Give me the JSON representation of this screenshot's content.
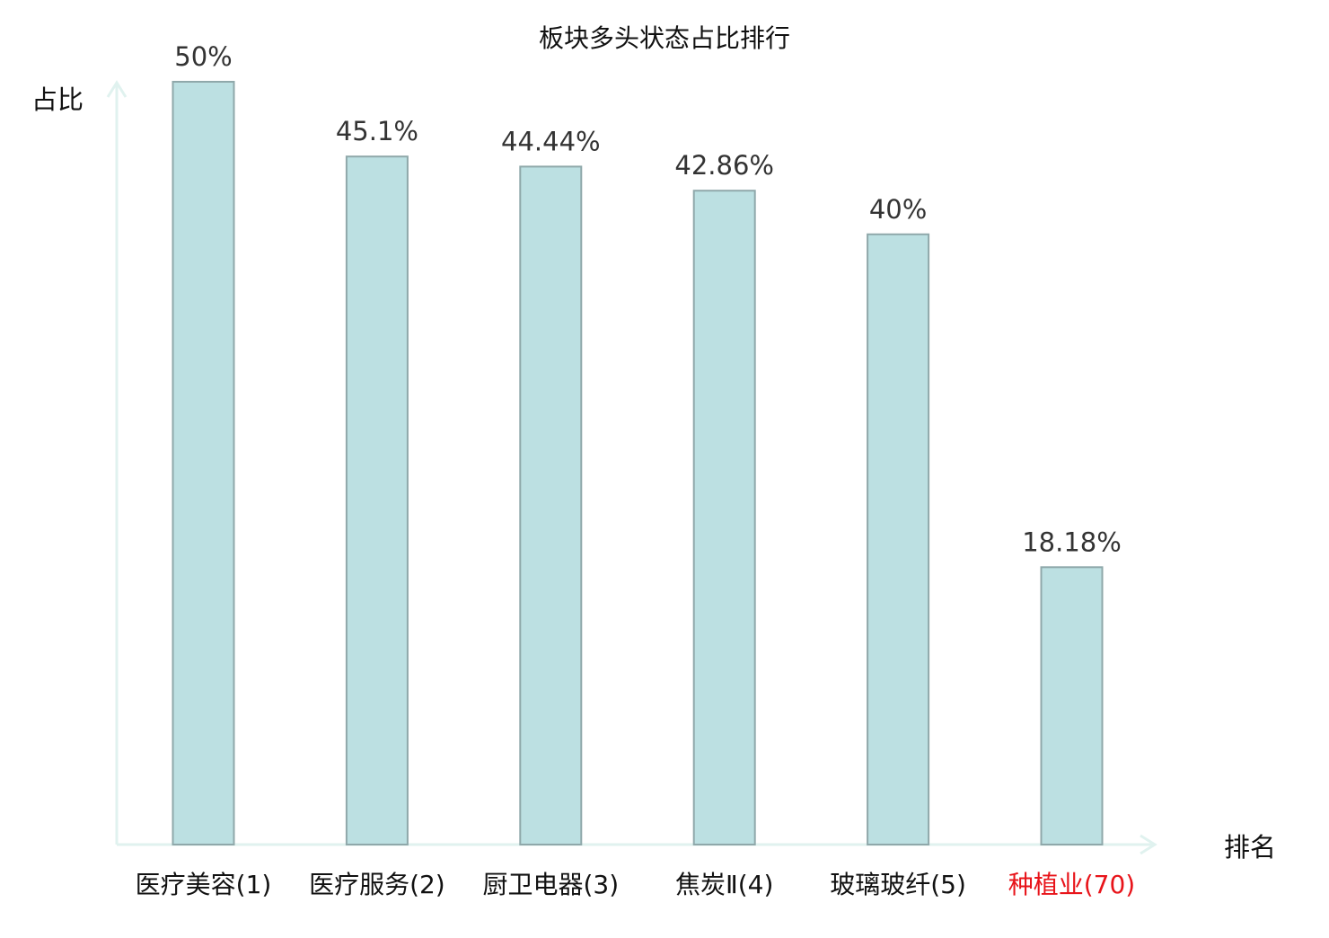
{
  "chart_data": {
    "type": "bar",
    "title": "板块多头状态占比排行",
    "ylabel": "占比",
    "xlabel": "排名",
    "categories": [
      "医疗美容(1)",
      "医疗服务(2)",
      "厨卫电器(3)",
      "焦炭Ⅱ(4)",
      "玻璃玻纤(5)",
      "种植业(70)"
    ],
    "values": [
      50,
      45.1,
      44.44,
      42.86,
      40,
      18.18
    ],
    "value_labels": [
      "50%",
      "45.1%",
      "44.44%",
      "42.86%",
      "40%",
      "18.18%"
    ],
    "ylim": [
      0,
      50
    ],
    "grid": false,
    "highlight_index": 5,
    "colors": {
      "bar_fill": "#bce0e2",
      "bar_stroke": "#8fa8aa",
      "axis": "#e0f2ef",
      "text": "#333333",
      "highlight": "#e8141a"
    }
  }
}
